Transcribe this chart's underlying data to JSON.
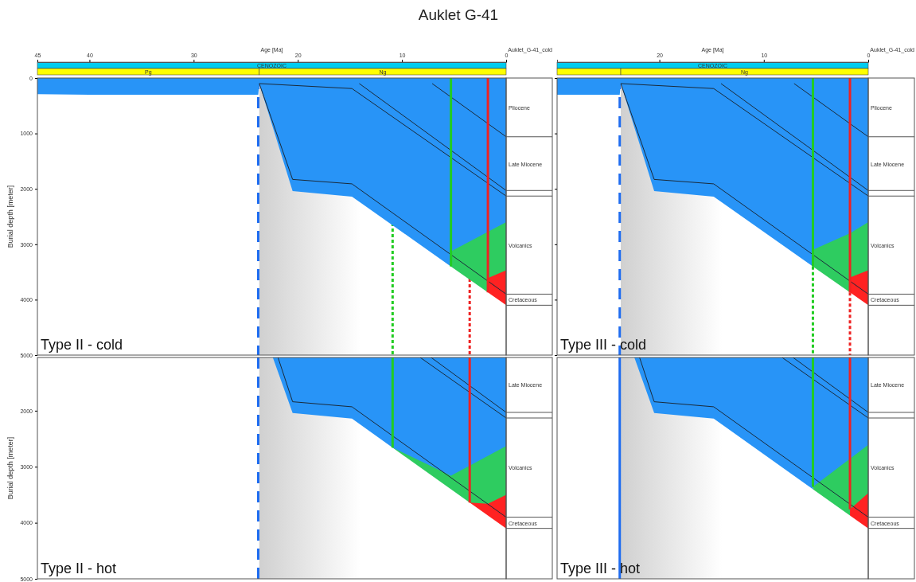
{
  "chart_data": [
    {
      "type": "area",
      "title": "Auklet G-41",
      "subtitle": "Type II - cold",
      "xlabel": "Age [Ma]",
      "ylabel": "Burial depth [meter]",
      "annotations": [
        "Auklet_G-41_cold",
        "CENOZOIC",
        "Pg",
        "Ng",
        "Pliocene",
        "Late Miocene",
        "Volcanics",
        "Cretaceous"
      ],
      "xlim": [
        45,
        0
      ],
      "xticks": [
        45,
        40,
        30,
        20,
        10,
        0
      ],
      "ylim": [
        5000,
        0
      ],
      "yticks": [
        0,
        1000,
        2000,
        3000,
        4000,
        5000
      ],
      "grid": false,
      "bands": [
        {
          "axis": "x",
          "from": 23.7,
          "to": 14,
          "color": "#d0d0d0"
        }
      ],
      "ref_lines": [
        {
          "axis": "x",
          "value": 23.8,
          "color": "#1e6cf0",
          "line_style": "dashed"
        },
        {
          "axis": "x",
          "value": 10.9,
          "color": "#22cc22",
          "line_style": "dotted"
        },
        {
          "axis": "x",
          "value": 3.5,
          "color": "#ee2222",
          "line_style": "dotted"
        }
      ],
      "series": [
        {
          "type": "area",
          "color": "#ff2222",
          "x": [
            1.75,
            0
          ],
          "values": [
            3870,
            4100
          ]
        },
        {
          "type": "area",
          "color": "#2ecc60",
          "x": [
            5.3,
            1.75,
            1.75,
            0
          ],
          "values": [
            3400,
            3870,
            3610,
            3470
          ]
        },
        {
          "type": "area",
          "color": "#2894f7",
          "x": [
            45,
            40,
            23.8,
            23.7,
            20.5,
            14.8,
            5.3,
            5.3,
            0
          ],
          "values": [
            290,
            300,
            300,
            100,
            2040,
            2140,
            3400,
            3130,
            2600
          ]
        },
        {
          "type": "line",
          "color": "#1a2a3a",
          "x": [
            23.7,
            14.8,
            0
          ],
          "values": [
            100,
            190,
            2130
          ]
        },
        {
          "type": "line",
          "color": "#1a2a3a",
          "x": [
            14.1,
            0
          ],
          "values": [
            100,
            2030
          ]
        },
        {
          "type": "line",
          "color": "#1a2a3a",
          "x": [
            7.1,
            0
          ],
          "values": [
            100,
            1060
          ]
        },
        {
          "type": "line",
          "color": "#1a2a3a",
          "x": [
            23.7,
            20.5,
            14.8,
            0
          ],
          "values": [
            100,
            1830,
            1910,
            3900
          ]
        },
        {
          "type": "line",
          "color": "#22cc22",
          "line_style": "solid",
          "x": [
            5.3,
            5.3
          ],
          "values": [
            0,
            3400
          ]
        },
        {
          "type": "line",
          "color": "#ee2222",
          "line_style": "solid",
          "x": [
            1.75,
            1.75
          ],
          "values": [
            0,
            3870
          ]
        }
      ]
    },
    {
      "type": "area",
      "subtitle": "Type III - cold",
      "xlabel": "Age [Ma]",
      "annotations": [
        "Auklet_G-41_cold",
        "CENOZOIC",
        "Ng",
        "Pliocene",
        "Late Miocene",
        "Volcanics",
        "Cretaceous"
      ],
      "xlim": [
        29.8,
        0
      ],
      "xticks": [
        20,
        10,
        0
      ],
      "ylim": [
        5000,
        0
      ],
      "yticks": [
        0,
        1000,
        2000,
        3000,
        4000,
        5000
      ],
      "tick_labels": "x",
      "grid": false,
      "bands": [
        {
          "axis": "x",
          "from": 23.7,
          "to": 14,
          "color": "#d0d0d0"
        }
      ],
      "ref_lines": [
        {
          "axis": "x",
          "value": 23.8,
          "color": "#1e6cf0",
          "line_style": "dashed"
        }
      ],
      "series": [
        {
          "type": "area",
          "color": "#ff2222",
          "x": [
            1.75,
            0
          ],
          "values": [
            3870,
            4100
          ]
        },
        {
          "type": "area",
          "color": "#2ecc60",
          "x": [
            5.3,
            1.75,
            1.75,
            0
          ],
          "values": [
            3400,
            3870,
            3600,
            3470
          ]
        },
        {
          "type": "area",
          "color": "#2894f7",
          "x": [
            29.8,
            23.8,
            23.7,
            20.5,
            14.8,
            5.3,
            5.3,
            1.75,
            0
          ],
          "values": [
            300,
            300,
            100,
            2040,
            2140,
            3400,
            3100,
            2800,
            2600
          ]
        },
        {
          "type": "line",
          "color": "#1a2a3a",
          "x": [
            23.7,
            14.8,
            0
          ],
          "values": [
            100,
            190,
            2130
          ]
        },
        {
          "type": "line",
          "color": "#1a2a3a",
          "x": [
            14.1,
            0
          ],
          "values": [
            100,
            2030
          ]
        },
        {
          "type": "line",
          "color": "#1a2a3a",
          "x": [
            7.1,
            0
          ],
          "values": [
            100,
            1060
          ]
        },
        {
          "type": "line",
          "color": "#1a2a3a",
          "x": [
            23.7,
            20.5,
            14.8,
            0
          ],
          "values": [
            100,
            1830,
            1910,
            3900
          ]
        },
        {
          "type": "line",
          "color": "#22cc22",
          "line_style": "solid",
          "x": [
            5.3,
            5.3
          ],
          "values": [
            0,
            3400
          ]
        },
        {
          "type": "line",
          "color": "#22cc22",
          "line_style": "dotted",
          "x": [
            5.3,
            5.3
          ],
          "values": [
            3400,
            5000
          ]
        },
        {
          "type": "line",
          "color": "#ee2222",
          "line_style": "solid",
          "x": [
            1.75,
            1.75
          ],
          "values": [
            0,
            3870
          ]
        },
        {
          "type": "line",
          "color": "#ee2222",
          "line_style": "dotted",
          "x": [
            1.75,
            1.75
          ],
          "values": [
            3870,
            5000
          ]
        }
      ]
    },
    {
      "type": "area",
      "subtitle": "Type II - hot",
      "ylabel": "Burial depth [meter]",
      "annotations": [
        "Late Miocene",
        "Volcanics",
        "Cretaceous"
      ],
      "xlim": [
        45,
        0
      ],
      "ylim": [
        5000,
        1050
      ],
      "yticks": [
        2000,
        3000,
        4000,
        5000
      ],
      "tick_labels": "y",
      "grid": false,
      "bands": [
        {
          "axis": "x",
          "from": 23.7,
          "to": 14,
          "color": "#d0d0d0"
        }
      ],
      "ref_lines": [
        {
          "axis": "x",
          "value": 23.8,
          "color": "#1e6cf0",
          "line_style": "dashed"
        }
      ],
      "series": [
        {
          "type": "area",
          "color": "#ff2222",
          "x": [
            3.5,
            0
          ],
          "values": [
            3640,
            4100
          ]
        },
        {
          "type": "area",
          "color": "#2ecc60",
          "x": [
            10.9,
            3.5,
            1.75,
            0
          ],
          "values": [
            2660,
            3640,
            3660,
            3500
          ]
        },
        {
          "type": "area",
          "color": "#2894f7",
          "x": [
            22.4,
            20.5,
            14.8,
            10.9,
            5.3,
            0
          ],
          "values": [
            1050,
            2040,
            2140,
            2660,
            3160,
            2630
          ]
        },
        {
          "type": "line",
          "color": "#1a2a3a",
          "x": [
            8.25,
            0
          ],
          "values": [
            1050,
            2130
          ]
        },
        {
          "type": "line",
          "color": "#1a2a3a",
          "x": [
            7.2,
            0
          ],
          "values": [
            1050,
            2030
          ]
        },
        {
          "type": "line",
          "color": "#1a2a3a",
          "x": [
            21.9,
            20.5,
            14.8,
            0
          ],
          "values": [
            1050,
            1840,
            1930,
            3900
          ]
        },
        {
          "type": "line",
          "color": "#22cc22",
          "line_style": "solid",
          "x": [
            10.9,
            10.9
          ],
          "values": [
            1050,
            2660
          ]
        },
        {
          "type": "line",
          "color": "#ee2222",
          "line_style": "solid",
          "x": [
            3.5,
            3.5
          ],
          "values": [
            1050,
            3640
          ]
        }
      ]
    },
    {
      "type": "area",
      "subtitle": "Type III - hot",
      "annotations": [
        "Late Miocene",
        "Volcanics",
        "Cretaceous"
      ],
      "xlim": [
        29.8,
        0
      ],
      "ylim": [
        5000,
        1050
      ],
      "tick_labels": false,
      "grid": false,
      "bands": [
        {
          "axis": "x",
          "from": 23.7,
          "to": 14,
          "color": "#d0d0d0"
        }
      ],
      "ref_lines": [
        {
          "axis": "x",
          "value": 23.8,
          "color": "#1e6cf0",
          "line_style": "solid"
        }
      ],
      "series": [
        {
          "type": "area",
          "color": "#ff2222",
          "x": [
            1.75,
            0
          ],
          "values": [
            3870,
            4100
          ]
        },
        {
          "type": "area",
          "color": "#2ecc60",
          "x": [
            5.3,
            1.75,
            1.75,
            0
          ],
          "values": [
            3400,
            3870,
            3760,
            3470
          ]
        },
        {
          "type": "area",
          "color": "#2894f7",
          "x": [
            22.4,
            20.5,
            14.8,
            5.3,
            5.3,
            0
          ],
          "values": [
            1050,
            2040,
            2140,
            3400,
            3360,
            2610
          ]
        },
        {
          "type": "line",
          "color": "#1a2a3a",
          "x": [
            8.25,
            0
          ],
          "values": [
            1050,
            2130
          ]
        },
        {
          "type": "line",
          "color": "#1a2a3a",
          "x": [
            7.2,
            0
          ],
          "values": [
            1050,
            2030
          ]
        },
        {
          "type": "line",
          "color": "#1a2a3a",
          "x": [
            21.9,
            20.5,
            14.8,
            0
          ],
          "values": [
            1050,
            1840,
            1930,
            3900
          ]
        },
        {
          "type": "line",
          "color": "#22cc22",
          "line_style": "solid",
          "x": [
            5.3,
            5.3
          ],
          "values": [
            1050,
            3360
          ]
        },
        {
          "type": "line",
          "color": "#ee2222",
          "line_style": "solid",
          "x": [
            1.75,
            1.75
          ],
          "values": [
            1050,
            3760
          ]
        }
      ]
    }
  ]
}
